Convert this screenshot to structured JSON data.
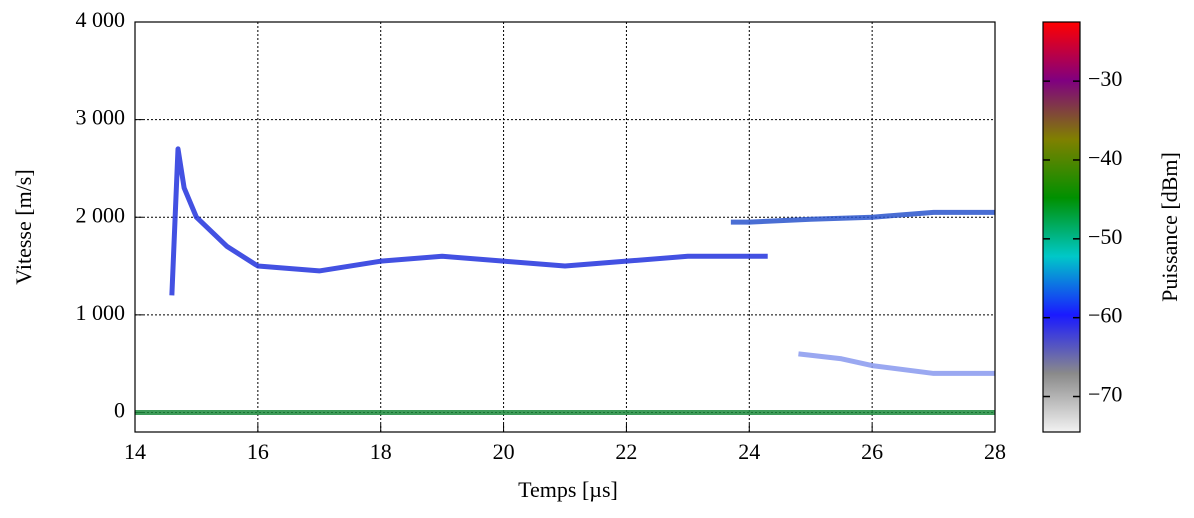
{
  "chart_data": {
    "type": "line",
    "xlabel": "Temps [µs]",
    "ylabel": "Vitesse [m/s]",
    "xlim": [
      14,
      28
    ],
    "xticks": [
      14,
      16,
      18,
      20,
      22,
      24,
      26,
      28
    ],
    "ylim": [
      -200,
      4000
    ],
    "yticks": [
      0,
      {
        "value": 1000,
        "label": "1 000"
      },
      {
        "value": 2000,
        "label": "2 000"
      },
      {
        "value": 3000,
        "label": "3 000"
      },
      {
        "value": 4000,
        "label": "4 000"
      }
    ],
    "grid": true,
    "series": [
      {
        "color": "#1c8a3c",
        "x": [
          14,
          28
        ],
        "values": [
          0,
          0
        ]
      },
      {
        "color": "#2233dd",
        "x": [
          14.6,
          14.7,
          14.8,
          15.0,
          15.5,
          16,
          17,
          18,
          19,
          20,
          21,
          22,
          23,
          24,
          24.3
        ],
        "values": [
          1200,
          2700,
          2300,
          2000,
          1700,
          1500,
          1450,
          1550,
          1600,
          1550,
          1500,
          1550,
          1600,
          1600,
          1600
        ]
      },
      {
        "color": "#2a55cc",
        "x": [
          23.7,
          24,
          25,
          26,
          27,
          28
        ],
        "values": [
          1950,
          1950,
          1980,
          2000,
          2050,
          2050
        ]
      },
      {
        "color": "#8899ee",
        "x": [
          24.8,
          25.5,
          26,
          27,
          28
        ],
        "values": [
          600,
          550,
          480,
          400,
          400
        ]
      }
    ],
    "colorbar": {
      "label": "Puissance [dBm]",
      "lim": [
        -74.5,
        -22.5
      ],
      "ticks": [
        {
          "value": -70,
          "label": "−70"
        },
        {
          "value": -60,
          "label": "−60"
        },
        {
          "value": -50,
          "label": "−50"
        },
        {
          "value": -40,
          "label": "−40"
        },
        {
          "value": -30,
          "label": "−30"
        }
      ],
      "colors": [
        "#f2f2f2",
        "#8a8a8a",
        "#1a1aff",
        "#00c8c8",
        "#009000",
        "#808000",
        "#800080",
        "#ff0000"
      ]
    }
  }
}
